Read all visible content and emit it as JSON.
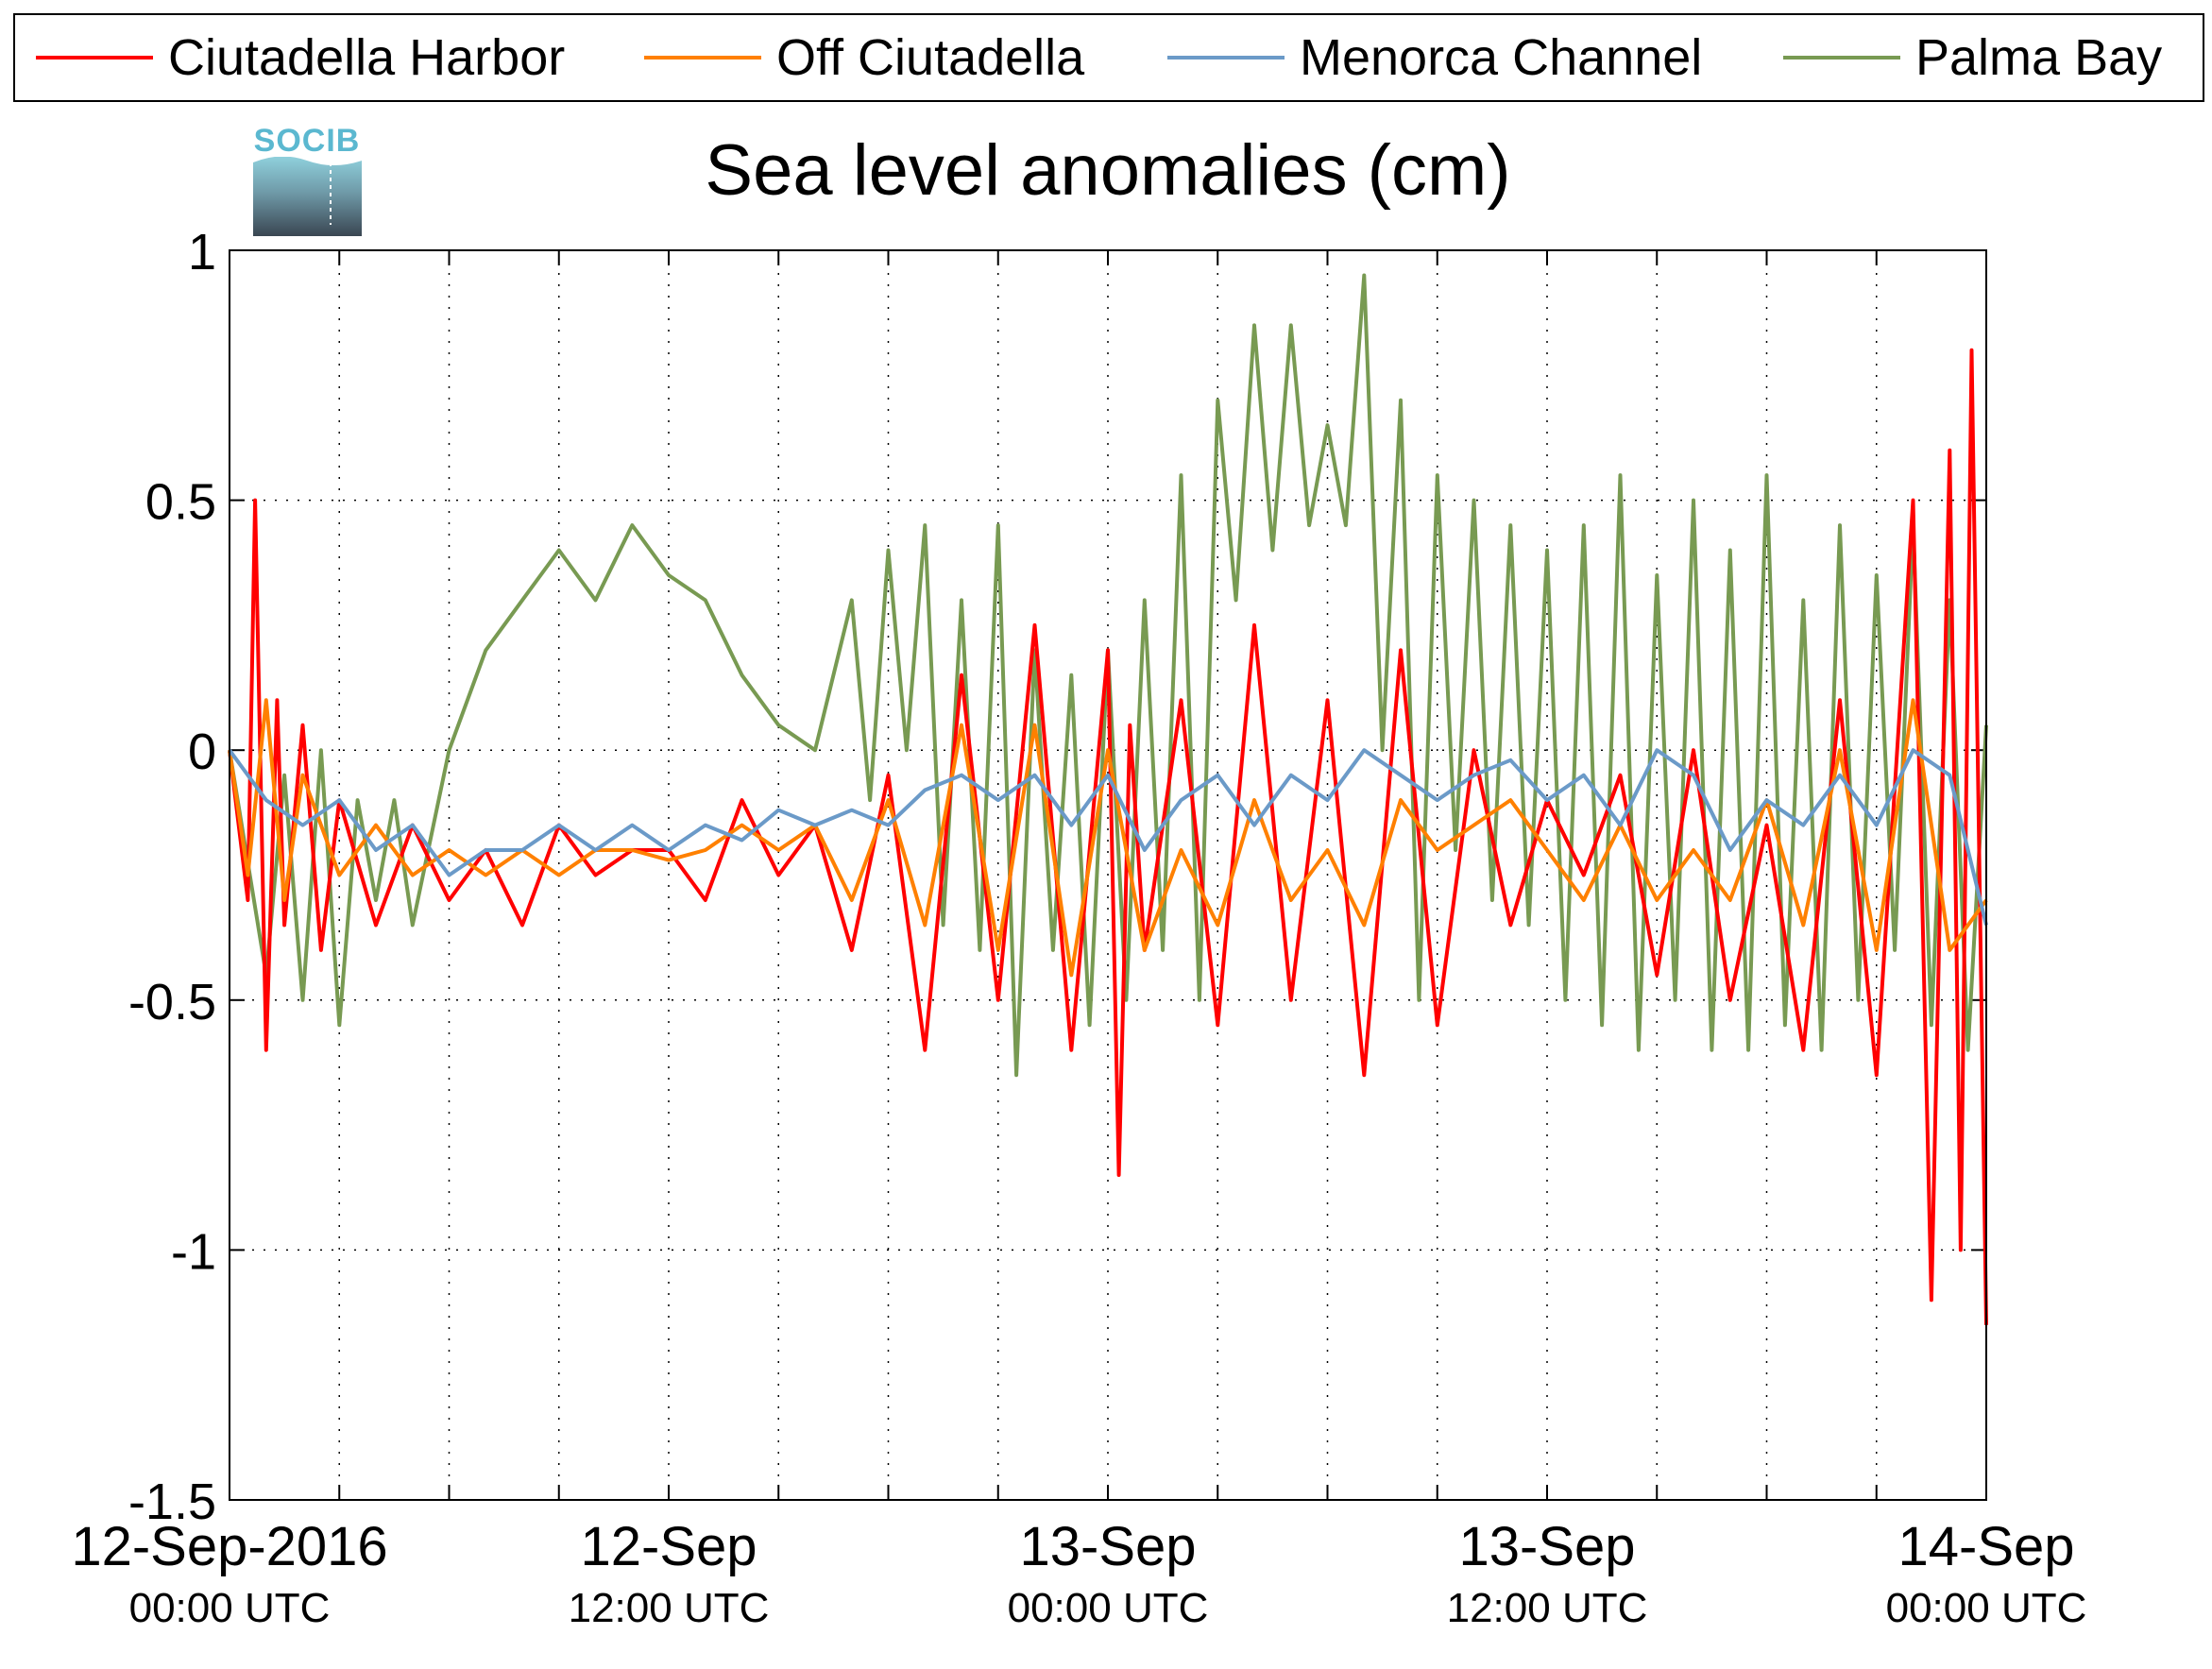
{
  "logo_text": "SOCIB",
  "chart_data": {
    "type": "line",
    "title": "Sea level anomalies (cm)",
    "xlabel": "",
    "ylabel": "",
    "x_range_hours": [
      0,
      48
    ],
    "ylim": [
      -1.5,
      1
    ],
    "y_ticks": [
      -1.5,
      -1,
      -0.5,
      0,
      0.5,
      1
    ],
    "y_tick_labels": [
      "-1.5",
      "-1",
      "-0.5",
      "0",
      "0.5",
      "1"
    ],
    "x_major_ticks_hours": [
      0,
      12,
      24,
      36,
      48
    ],
    "x_tick_labels": [
      {
        "date": "12-Sep-2016",
        "time": "00:00 UTC"
      },
      {
        "date": "12-Sep",
        "time": "12:00 UTC"
      },
      {
        "date": "13-Sep",
        "time": "00:00 UTC"
      },
      {
        "date": "13-Sep",
        "time": "12:00 UTC"
      },
      {
        "date": "14-Sep",
        "time": "00:00 UTC"
      }
    ],
    "grid": true,
    "legend_position": "top",
    "series": [
      {
        "name": "Ciutadella Harbor",
        "color": "#ff0000",
        "x_hours": [
          0,
          0.5,
          0.7,
          1,
          1.3,
          1.5,
          2,
          2.5,
          3,
          4,
          5,
          6,
          7,
          8,
          9,
          10,
          11,
          12,
          13,
          14,
          15,
          16,
          17,
          18,
          19,
          20,
          21,
          22,
          23,
          24,
          24.3,
          24.6,
          25,
          26,
          27,
          28,
          29,
          30,
          31,
          32,
          33,
          34,
          35,
          36,
          37,
          38,
          39,
          40,
          41,
          42,
          43,
          44,
          45,
          46,
          46.5,
          47,
          47.3,
          47.6,
          48
        ],
        "values": [
          0.0,
          -0.3,
          0.5,
          -0.6,
          0.1,
          -0.35,
          0.05,
          -0.4,
          -0.1,
          -0.35,
          -0.15,
          -0.3,
          -0.2,
          -0.35,
          -0.15,
          -0.25,
          -0.2,
          -0.2,
          -0.3,
          -0.1,
          -0.25,
          -0.15,
          -0.4,
          -0.05,
          -0.6,
          0.15,
          -0.5,
          0.25,
          -0.6,
          0.2,
          -0.85,
          0.05,
          -0.4,
          0.1,
          -0.55,
          0.25,
          -0.5,
          0.1,
          -0.65,
          0.2,
          -0.55,
          0.0,
          -0.35,
          -0.1,
          -0.25,
          -0.05,
          -0.45,
          0.0,
          -0.5,
          -0.15,
          -0.6,
          0.1,
          -0.65,
          0.5,
          -1.1,
          0.6,
          -1.0,
          0.8,
          -1.15
        ]
      },
      {
        "name": "Off Ciutadella",
        "color": "#ff8000",
        "x_hours": [
          0,
          0.5,
          1,
          1.5,
          2,
          3,
          4,
          5,
          6,
          7,
          8,
          9,
          10,
          11,
          12,
          13,
          14,
          15,
          16,
          17,
          18,
          19,
          20,
          21,
          22,
          23,
          24,
          25,
          26,
          27,
          28,
          29,
          30,
          31,
          32,
          33,
          34,
          35,
          36,
          37,
          38,
          39,
          40,
          41,
          42,
          43,
          44,
          45,
          46,
          47,
          48
        ],
        "values": [
          0.0,
          -0.25,
          0.1,
          -0.3,
          -0.05,
          -0.25,
          -0.15,
          -0.25,
          -0.2,
          -0.25,
          -0.2,
          -0.25,
          -0.2,
          -0.2,
          -0.22,
          -0.2,
          -0.15,
          -0.2,
          -0.15,
          -0.3,
          -0.1,
          -0.35,
          0.05,
          -0.4,
          0.05,
          -0.45,
          0.0,
          -0.4,
          -0.2,
          -0.35,
          -0.1,
          -0.3,
          -0.2,
          -0.35,
          -0.1,
          -0.2,
          -0.15,
          -0.1,
          -0.2,
          -0.3,
          -0.15,
          -0.3,
          -0.2,
          -0.3,
          -0.1,
          -0.35,
          0.0,
          -0.4,
          0.1,
          -0.4,
          -0.3
        ]
      },
      {
        "name": "Menorca Channel",
        "color": "#6b9ac8",
        "x_hours": [
          0,
          1,
          2,
          3,
          4,
          5,
          6,
          7,
          8,
          9,
          10,
          11,
          12,
          13,
          14,
          15,
          16,
          17,
          18,
          19,
          20,
          21,
          22,
          23,
          24,
          25,
          26,
          27,
          28,
          29,
          30,
          31,
          32,
          33,
          34,
          35,
          36,
          37,
          38,
          39,
          40,
          41,
          42,
          43,
          44,
          45,
          46,
          47,
          48
        ],
        "values": [
          0.0,
          -0.1,
          -0.15,
          -0.1,
          -0.2,
          -0.15,
          -0.25,
          -0.2,
          -0.2,
          -0.15,
          -0.2,
          -0.15,
          -0.2,
          -0.15,
          -0.18,
          -0.12,
          -0.15,
          -0.12,
          -0.15,
          -0.08,
          -0.05,
          -0.1,
          -0.05,
          -0.15,
          -0.05,
          -0.2,
          -0.1,
          -0.05,
          -0.15,
          -0.05,
          -0.1,
          0.0,
          -0.05,
          -0.1,
          -0.05,
          -0.02,
          -0.1,
          -0.05,
          -0.15,
          0.0,
          -0.05,
          -0.2,
          -0.1,
          -0.15,
          -0.05,
          -0.15,
          0.0,
          -0.05,
          -0.35
        ]
      },
      {
        "name": "Palma Bay",
        "color": "#789a52",
        "x_hours": [
          0,
          1,
          1.5,
          2,
          2.5,
          3,
          3.5,
          4,
          4.5,
          5,
          6,
          7,
          8,
          9,
          10,
          11,
          12,
          13,
          14,
          15,
          16,
          17,
          17.5,
          18,
          18.5,
          19,
          19.5,
          20,
          20.5,
          21,
          21.5,
          22,
          22.5,
          23,
          23.5,
          24,
          24.5,
          25,
          25.5,
          26,
          26.5,
          27,
          27.5,
          28,
          28.5,
          29,
          29.5,
          30,
          30.5,
          31,
          31.5,
          32,
          32.5,
          33,
          33.5,
          34,
          34.5,
          35,
          35.5,
          36,
          36.5,
          37,
          37.5,
          38,
          38.5,
          39,
          39.5,
          40,
          40.5,
          41,
          41.5,
          42,
          42.5,
          43,
          43.5,
          44,
          44.5,
          45,
          45.5,
          46,
          46.5,
          47,
          47.5,
          48
        ],
        "values": [
          0.0,
          -0.45,
          -0.05,
          -0.5,
          0.0,
          -0.55,
          -0.1,
          -0.3,
          -0.1,
          -0.35,
          0.0,
          0.2,
          0.3,
          0.4,
          0.3,
          0.45,
          0.35,
          0.3,
          0.15,
          0.05,
          0.0,
          0.3,
          -0.1,
          0.4,
          0.0,
          0.45,
          -0.35,
          0.3,
          -0.4,
          0.45,
          -0.65,
          0.2,
          -0.4,
          0.15,
          -0.55,
          0.2,
          -0.5,
          0.3,
          -0.4,
          0.55,
          -0.5,
          0.7,
          0.3,
          0.85,
          0.4,
          0.85,
          0.45,
          0.65,
          0.45,
          0.95,
          0.0,
          0.7,
          -0.5,
          0.55,
          -0.2,
          0.5,
          -0.3,
          0.45,
          -0.35,
          0.4,
          -0.5,
          0.45,
          -0.55,
          0.55,
          -0.6,
          0.35,
          -0.5,
          0.5,
          -0.6,
          0.4,
          -0.6,
          0.55,
          -0.55,
          0.3,
          -0.6,
          0.45,
          -0.5,
          0.35,
          -0.4,
          0.45,
          -0.55,
          0.3,
          -0.6,
          0.05
        ]
      }
    ]
  }
}
